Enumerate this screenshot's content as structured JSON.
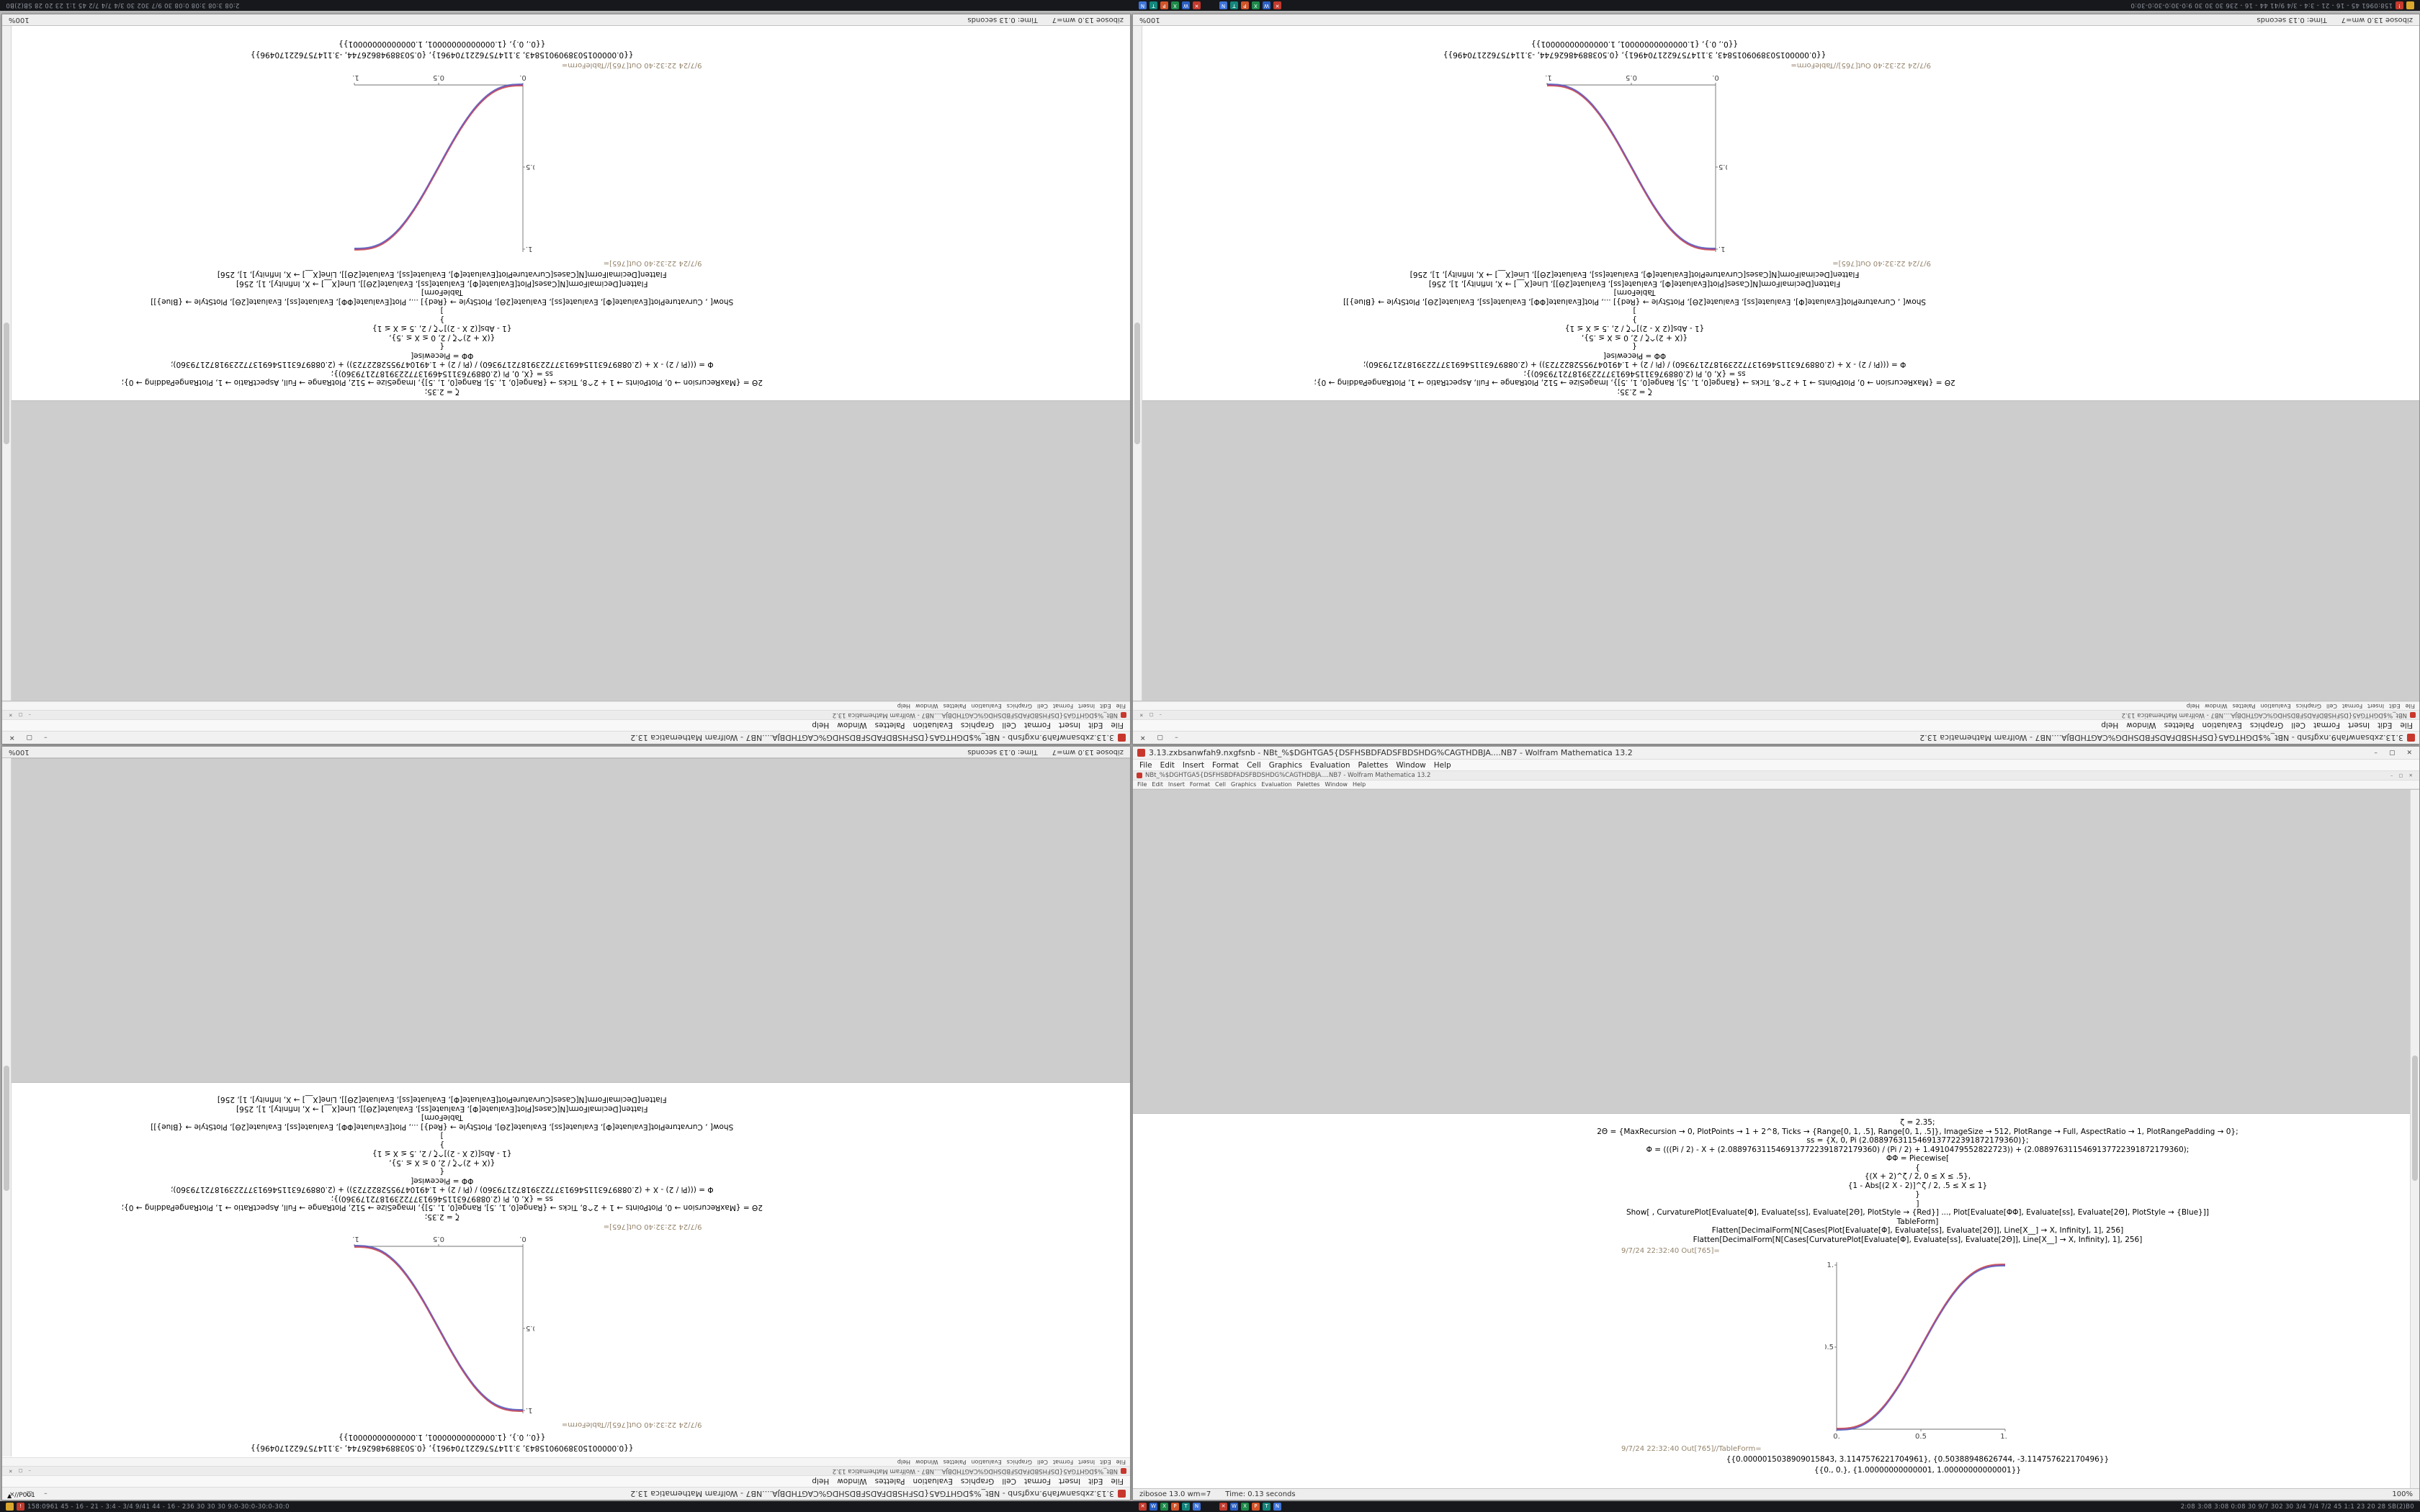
{
  "titles": {
    "outer": "3.13.zxbsanwfah9.nxgfsnb - NBt_%$DGHTGA5{DSFHSBDFADSFBDSHDG%CAGTHDBJA....NB7 - Wolfram Mathematica 13.2",
    "inner": "NBt_%$DGHTGA5{DSFHSBDFADSFBDSHDG%CAGTHDBJA....NB7 - Wolfram Mathematica 13.2"
  },
  "window_controls": {
    "minimize": "–",
    "maximize": "▢",
    "close": "✕"
  },
  "menus": [
    "File",
    "Edit",
    "Insert",
    "Format",
    "Cell",
    "Graphics",
    "Evaluation",
    "Palettes",
    "Window",
    "Help"
  ],
  "status": {
    "app": "zibosoe 13.0 wm=7",
    "time": "Time: 0.13 seconds",
    "zoom": "100%"
  },
  "notebook": {
    "lines": [
      "ζ = 2.35;",
      "2Θ = {MaxRecursion → 0, PlotPoints → 1 + 2^8, Ticks → {Range[0, 1, .5], Range[0, 1, .5]}, ImageSize → 512, PlotRange → Full, AspectRatio → 1, PlotRangePadding → 0};",
      "ss = {X, 0, Pi (2.0889763115469137722391872179360)};",
      "Φ = (((Pi / 2) - X + (2.0889763115469137722391872179360) / (Pi / 2) + 1.4910479552822723)) + (2.0889763115469137722391872179360);",
      "ΦΦ = Piecewise[",
      "{",
      "{(X + 2)^ζ / 2, 0 ≤ X ≤ .5},",
      "{1 - Abs[(2 X - 2)]^ζ / 2, .5 ≤ X ≤ 1}",
      "}",
      "]",
      "Show[ , CurvaturePlot[Evaluate[Φ], Evaluate[ss], Evaluate[2Θ], PlotStyle → {Red}] ..., Plot[Evaluate[ΦΦ], Evaluate[ss], Evaluate[2Θ], PlotStyle → {Blue}]]",
      "TableForm]",
      "Flatten[DecimalForm[N[Cases[Plot[Evaluate[Φ], Evaluate[ss], Evaluate[2Θ]], Line[X__] → X, Infinity], 1], 256]",
      "Flatten[DecimalForm[N[Cases[CurvaturePlot[Evaluate[Φ], Evaluate[ss], Evaluate[2Θ]], Line[X__] → X, Infinity], 1], 256]"
    ],
    "out_label": "9/7/24 22:32:40 Out[765]=",
    "tableform_label": "9/7/24 22:32:40 Out[765]//TableForm=",
    "results": [
      "{{0.0000015038909015843, 3.1147576221704961}, {0.50388948626744, -3.114757622170496}}",
      "{{0., 0.}, {1.00000000000001, 1.00000000000001}}"
    ],
    "plot": {
      "type": "line",
      "x_range": [
        0,
        1
      ],
      "y_range": [
        0,
        1
      ],
      "x_ticks": [
        "0.",
        "0.5",
        "1."
      ],
      "y_ticks": [
        "1.",
        "0.5"
      ],
      "series": [
        {
          "name": "CurvaturePlot",
          "color": "#cc4437"
        },
        {
          "name": "Plot",
          "color": "#3f5fbf"
        }
      ]
    }
  },
  "windows": [
    {
      "id": "top-left",
      "rotated": true,
      "curve": "ascending",
      "layout": "standard"
    },
    {
      "id": "top-right",
      "rotated": true,
      "curve": "descending",
      "layout": "standard"
    },
    {
      "id": "bottom-left",
      "rotated": true,
      "curve": "descending",
      "layout": "reversed"
    },
    {
      "id": "bottom-right",
      "rotated": false,
      "curve": "ascending",
      "layout": "standard"
    }
  ],
  "taskbar": {
    "left_icons": [
      {
        "name": "folder-icon",
        "color": "#d9a62e",
        "glyph": ""
      },
      {
        "name": "alert-icon",
        "color": "#c43b2e",
        "glyph": "!"
      }
    ],
    "left_text": "158:0961 45 - 16 - 21 - 3:4 - 3/4 9/41 44 - 16 - 236 30 30 30 9:0-30:0-30:0-30:0",
    "apps": [
      {
        "name": "app-red-icon",
        "color": "#c23a2e",
        "glyph": "✕"
      },
      {
        "name": "app-word-icon",
        "color": "#2b5fc2",
        "glyph": "W"
      },
      {
        "name": "app-excel-icon",
        "color": "#1d8a4a",
        "glyph": "X"
      },
      {
        "name": "app-powerpoint-icon",
        "color": "#d2552a",
        "glyph": "P"
      },
      {
        "name": "app-teal-icon",
        "color": "#13857b",
        "glyph": "T"
      },
      {
        "name": "app-blue-icon",
        "color": "#3f74d9",
        "glyph": "N"
      }
    ],
    "right_text": "2:08 3:08 3:08 0:08 30 9/7 302 30 3/4 7/4 7/2 45 1:1 23 20 28 SB(2)B0",
    "note": "//P001"
  }
}
